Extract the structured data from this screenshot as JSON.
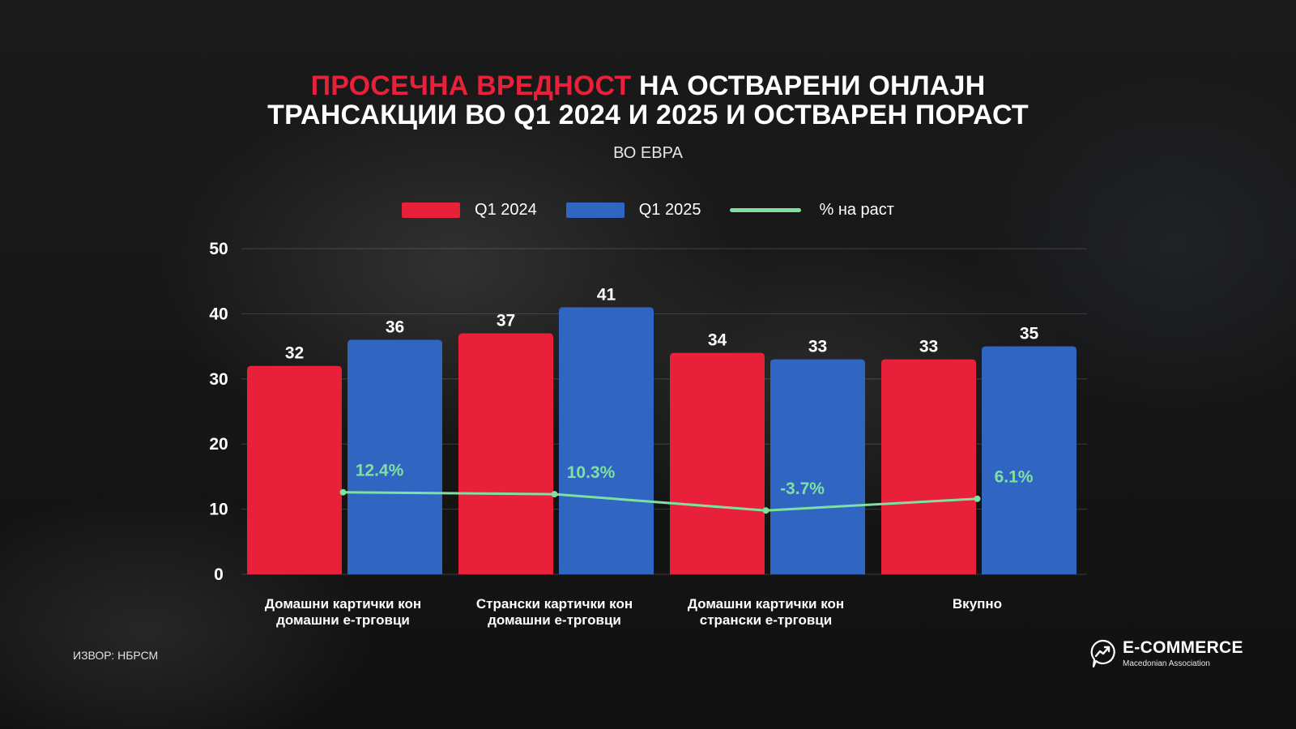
{
  "title": {
    "highlight": "ПРОСЕЧНА ВРЕДНОСТ",
    "line1_rest": " НА ОСТВАРЕНИ ОНЛАЈН",
    "line2": "ТРАНСАКЦИИ ВО Q1 2024 И 2025 И ОСТВАРЕН ПОРАСТ"
  },
  "subtitle": "ВО ЕВРА",
  "source": "ИЗВОР: НБРСМ",
  "logo": {
    "name": "E-COMMERCE",
    "sub": "Macedonian Association",
    "icon": "trend-up-chat-icon"
  },
  "colors": {
    "q1_2024": "#e8203a",
    "q1_2025": "#3066c2",
    "growth": "#7fe0a0",
    "title_highlight": "#e8203a"
  },
  "chart_data": {
    "type": "bar",
    "categories": [
      [
        "Домашни картички кон",
        "домашни е-трговци"
      ],
      [
        "Странски картички кон",
        "домашни е-трговци"
      ],
      [
        "Домашни картички кон",
        "странски е-трговци"
      ],
      [
        "Вкупно"
      ]
    ],
    "series": [
      {
        "name": "Q1 2024",
        "values": [
          32,
          37,
          34,
          33
        ]
      },
      {
        "name": "Q1 2025",
        "values": [
          36,
          41,
          33,
          35
        ]
      }
    ],
    "growth": {
      "name": "% на раст",
      "labels": [
        "12.4%",
        "10.3%",
        "-3.7%",
        "6.1%"
      ],
      "line_y_on_axis": [
        12.6,
        12.3,
        9.8,
        11.6
      ]
    },
    "y_ticks": [
      "0",
      "10",
      "20",
      "30",
      "40",
      "50"
    ],
    "ylim": [
      0,
      50
    ],
    "grid": true,
    "legend_position": "top-center"
  }
}
